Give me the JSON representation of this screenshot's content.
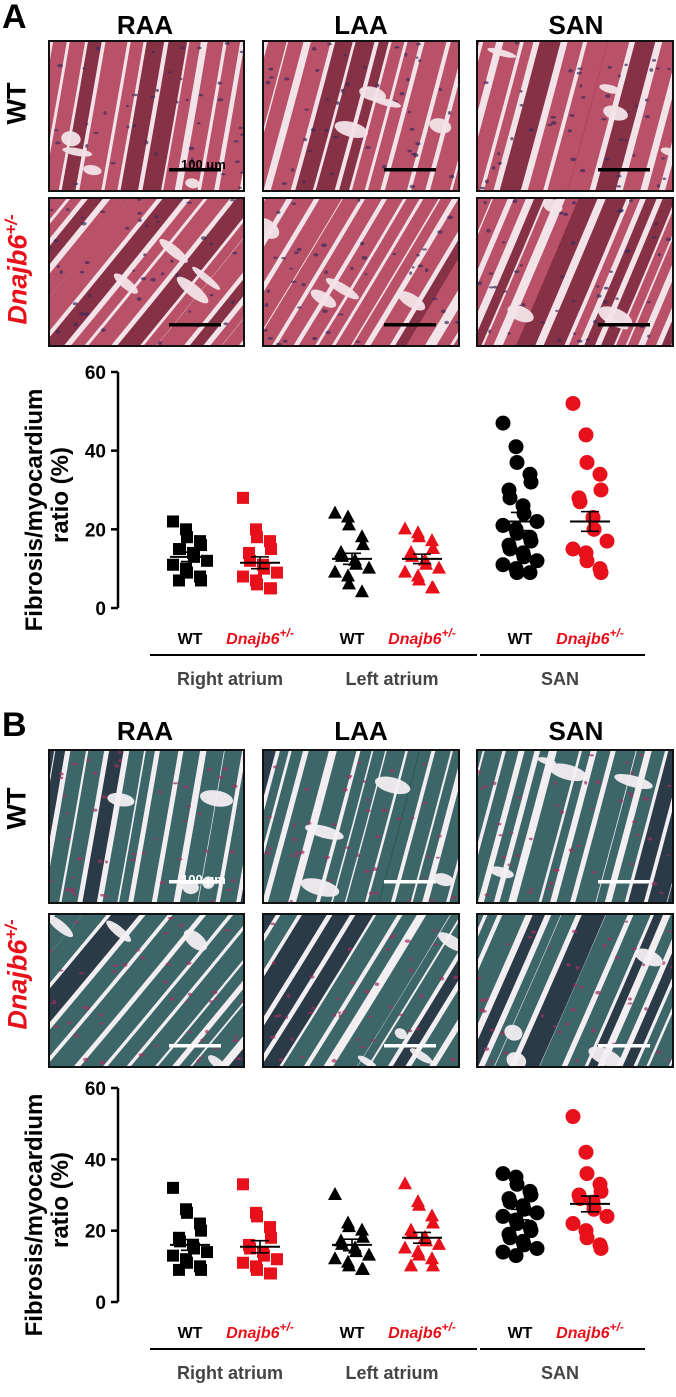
{
  "panels": [
    {
      "letter": "A",
      "columns": [
        "RAA",
        "LAA",
        "SAN"
      ],
      "rows": [
        "WT",
        "Dnajb6+/-"
      ],
      "scale_label": "100 μm",
      "stain": "he",
      "colors": {
        "tissue": "#b4445c",
        "tissue_dark": "#7e2238",
        "background": "#f2e3e8",
        "nuclei": "#3c2a5a",
        "scalebar": "#000000"
      }
    },
    {
      "letter": "B",
      "columns": [
        "RAA",
        "LAA",
        "SAN"
      ],
      "rows": [
        "WT",
        "Dnajb6+/-"
      ],
      "scale_label": "100 μm",
      "stain": "masson",
      "colors": {
        "tissue": "#2e5a5c",
        "tissue_dark": "#1a2a38",
        "background": "#f2eef2",
        "nuclei": "#a03060",
        "scalebar": "#ffffff"
      }
    }
  ],
  "chart_data": [
    {
      "type": "scatter",
      "ylabel": "Fibrosis/myocardium ratio (%)",
      "ylim": [
        0,
        60
      ],
      "yticks": [
        0,
        20,
        40,
        60
      ],
      "legend_groups": [
        "Right atrium",
        "Left atrium",
        "SAN"
      ],
      "genotype_labels": {
        "wt": "WT",
        "mut_base": "Dnajb6",
        "mut_sup": "+/-"
      },
      "colors": {
        "WT": "#000000",
        "Dnajb6+/-": "#e8101a"
      },
      "series": [
        {
          "name": "WT",
          "group": "Right atrium",
          "marker": "square",
          "mean": 13,
          "sem": 1.2,
          "values": [
            22,
            20,
            18,
            17,
            16,
            15,
            15,
            14,
            13,
            12,
            11,
            10,
            9,
            8,
            7,
            7
          ]
        },
        {
          "name": "Dnajb6+/-",
          "group": "Right atrium",
          "marker": "square",
          "mean": 11.5,
          "sem": 1.5,
          "values": [
            28,
            20,
            18,
            17,
            15,
            14,
            12,
            11,
            10,
            9,
            8,
            7,
            6,
            5,
            5
          ]
        },
        {
          "name": "WT",
          "group": "Left atrium",
          "marker": "triangle",
          "mean": 12.5,
          "sem": 1.4,
          "values": [
            24,
            23,
            21,
            18,
            16,
            14,
            13,
            12,
            11,
            10,
            9,
            8,
            6,
            4
          ]
        },
        {
          "name": "Dnajb6+/-",
          "group": "Left atrium",
          "marker": "triangle",
          "mean": 12.5,
          "sem": 1.2,
          "values": [
            20,
            19,
            18,
            17,
            15,
            14,
            13,
            12,
            11,
            10,
            9,
            8,
            7,
            5,
            5
          ]
        },
        {
          "name": "WT",
          "group": "SAN",
          "marker": "circle",
          "mean": 22,
          "sem": 2.3,
          "values": [
            47,
            41,
            37,
            34,
            32,
            30,
            28,
            26,
            24,
            22,
            21,
            20,
            19,
            18,
            17,
            16,
            15,
            14,
            13,
            12,
            11,
            10,
            9,
            9
          ]
        },
        {
          "name": "Dnajb6+/-",
          "group": "SAN",
          "marker": "circle",
          "mean": 22,
          "sem": 2.5,
          "values": [
            52,
            44,
            37,
            34,
            30,
            28,
            27,
            23,
            20,
            17,
            15,
            14,
            12,
            10,
            9
          ]
        }
      ]
    },
    {
      "type": "scatter",
      "ylabel": "Fibrosis/myocardium ratio (%)",
      "ylim": [
        0,
        60
      ],
      "yticks": [
        0,
        20,
        40,
        60
      ],
      "legend_groups": [
        "Right atrium",
        "Left atrium",
        "SAN"
      ],
      "genotype_labels": {
        "wt": "WT",
        "mut_base": "Dnajb6",
        "mut_sup": "+/-"
      },
      "colors": {
        "WT": "#000000",
        "Dnajb6+/-": "#e8101a"
      },
      "series": [
        {
          "name": "WT",
          "group": "Right atrium",
          "marker": "square",
          "mean": 16,
          "sem": 1.5,
          "values": [
            32,
            26,
            25,
            22,
            20,
            18,
            17,
            16,
            15,
            14,
            13,
            12,
            11,
            10,
            9,
            9
          ]
        },
        {
          "name": "Dnajb6+/-",
          "group": "Right atrium",
          "marker": "square",
          "mean": 15.5,
          "sem": 1.7,
          "values": [
            33,
            25,
            24,
            21,
            18,
            16,
            15,
            14,
            13,
            12,
            11,
            10,
            9,
            8,
            8
          ]
        },
        {
          "name": "WT",
          "group": "Left atrium",
          "marker": "triangle",
          "mean": 16,
          "sem": 1.6,
          "values": [
            30,
            22,
            21,
            20,
            18,
            17,
            16,
            15,
            14,
            13,
            12,
            11,
            10,
            9,
            9
          ]
        },
        {
          "name": "Dnajb6+/-",
          "group": "Left atrium",
          "marker": "triangle",
          "mean": 18,
          "sem": 1.5,
          "values": [
            33,
            28,
            27,
            24,
            22,
            20,
            19,
            18,
            17,
            16,
            15,
            14,
            13,
            12,
            10,
            10
          ]
        },
        {
          "name": "WT",
          "group": "SAN",
          "marker": "circle",
          "mean": 24.5,
          "sem": 1.5,
          "values": [
            36,
            35,
            33,
            31,
            30,
            29,
            28,
            27,
            26,
            25,
            24,
            23,
            22,
            21,
            20,
            19,
            18,
            17,
            16,
            15,
            14,
            13
          ]
        },
        {
          "name": "Dnajb6+/-",
          "group": "SAN",
          "marker": "circle",
          "mean": 27.5,
          "sem": 2.2,
          "values": [
            52,
            42,
            36,
            33,
            31,
            30,
            29,
            28,
            26,
            24,
            22,
            20,
            18,
            16,
            15
          ]
        }
      ]
    }
  ]
}
